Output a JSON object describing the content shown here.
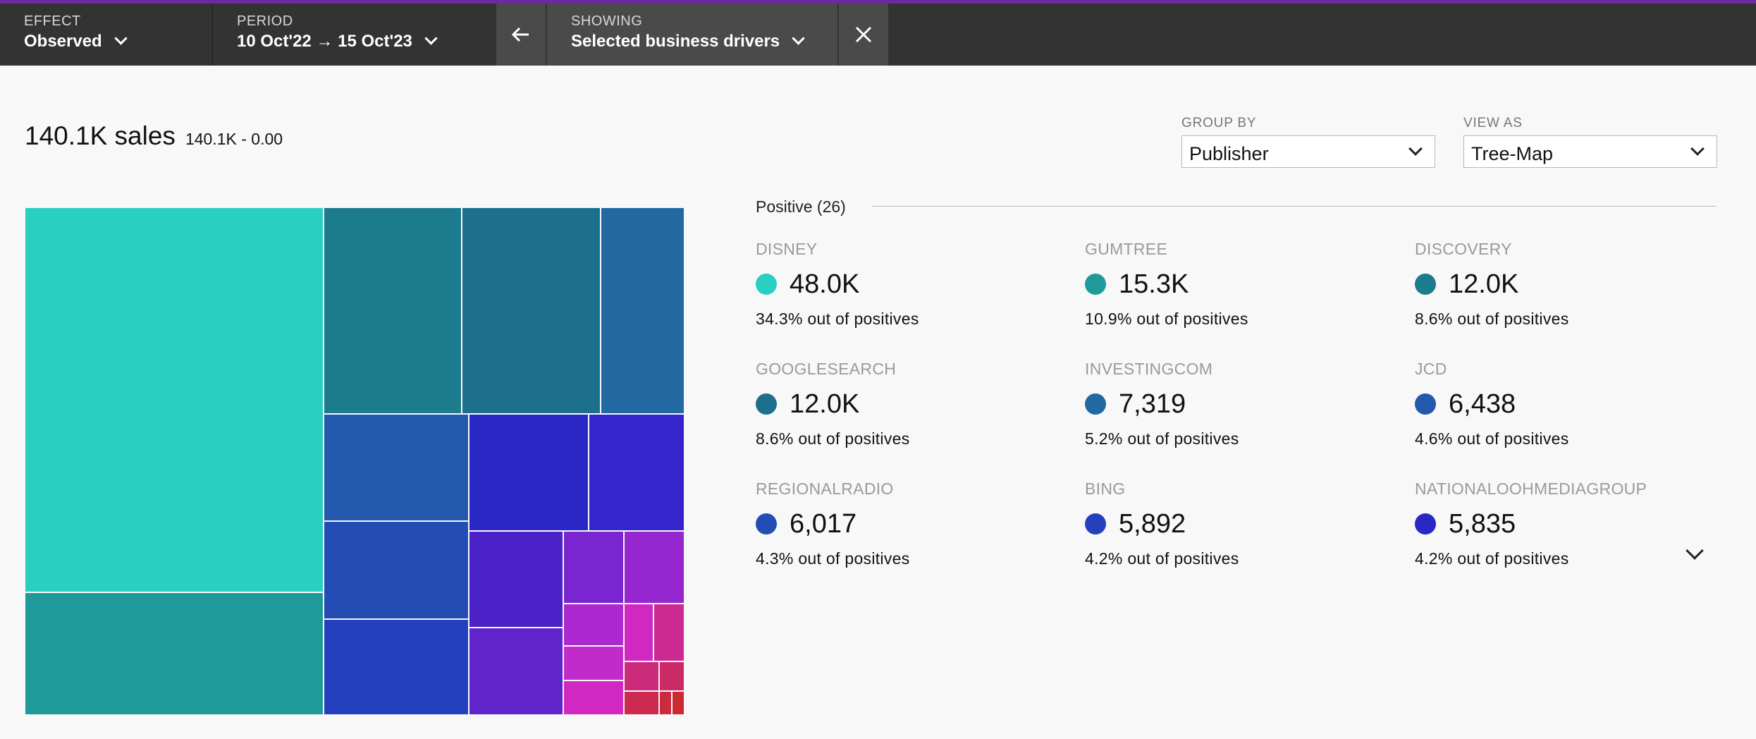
{
  "filters": {
    "effect": {
      "label": "EFFECT",
      "value": "Observed"
    },
    "period": {
      "label": "PERIOD",
      "value": "10 Oct'22 → 15 Oct'23"
    },
    "showing": {
      "label": "SHOWING",
      "value": "Selected business drivers"
    }
  },
  "summary": {
    "total": "140.1K sales",
    "range": "140.1K - 0.00"
  },
  "group_by": {
    "label": "GROUP BY",
    "value": "Publisher"
  },
  "view_as": {
    "label": "VIEW AS",
    "value": "Tree-Map"
  },
  "positive": {
    "header": "Positive (26)",
    "items": [
      {
        "name": "DISNEY",
        "value": "48.0K",
        "share": "34.3% out of positives",
        "color": "#29cfc1"
      },
      {
        "name": "GUMTREE",
        "value": "15.3K",
        "share": "10.9% out of positives",
        "color": "#1e9a9a"
      },
      {
        "name": "DISCOVERY",
        "value": "12.0K",
        "share": "8.6% out of positives",
        "color": "#1d7b8e"
      },
      {
        "name": "GOOGLESEARCH",
        "value": "12.0K",
        "share": "8.6% out of positives",
        "color": "#1d6f8e"
      },
      {
        "name": "INVESTINGCOM",
        "value": "7,319",
        "share": "5.2% out of positives",
        "color": "#2169a0"
      },
      {
        "name": "JCD",
        "value": "6,438",
        "share": "4.6% out of positives",
        "color": "#2259ad"
      },
      {
        "name": "REGIONALRADIO",
        "value": "6,017",
        "share": "4.3% out of positives",
        "color": "#234db5"
      },
      {
        "name": "BING",
        "value": "5,892",
        "share": "4.2% out of positives",
        "color": "#2440bd"
      },
      {
        "name": "NATIONALOOHMEDIAGROUP",
        "value": "5,835",
        "share": "4.2% out of positives",
        "color": "#2a28c4"
      }
    ]
  },
  "treemap_colors": [
    "#29cfc1",
    "#1e9a9a",
    "#1d7b8e",
    "#1d6f8e",
    "#2169a0",
    "#2259ad",
    "#234db5",
    "#2440bd",
    "#2a28c4",
    "#3624cc",
    "#4a22c8",
    "#6124cc",
    "#7a26d0",
    "#9626d0",
    "#ac28d0",
    "#c02ccc",
    "#d028c0",
    "#cc2a90",
    "#cc2a7a",
    "#cc2a66",
    "#cc2a50",
    "#cc2a40",
    "#cc2a30"
  ]
}
